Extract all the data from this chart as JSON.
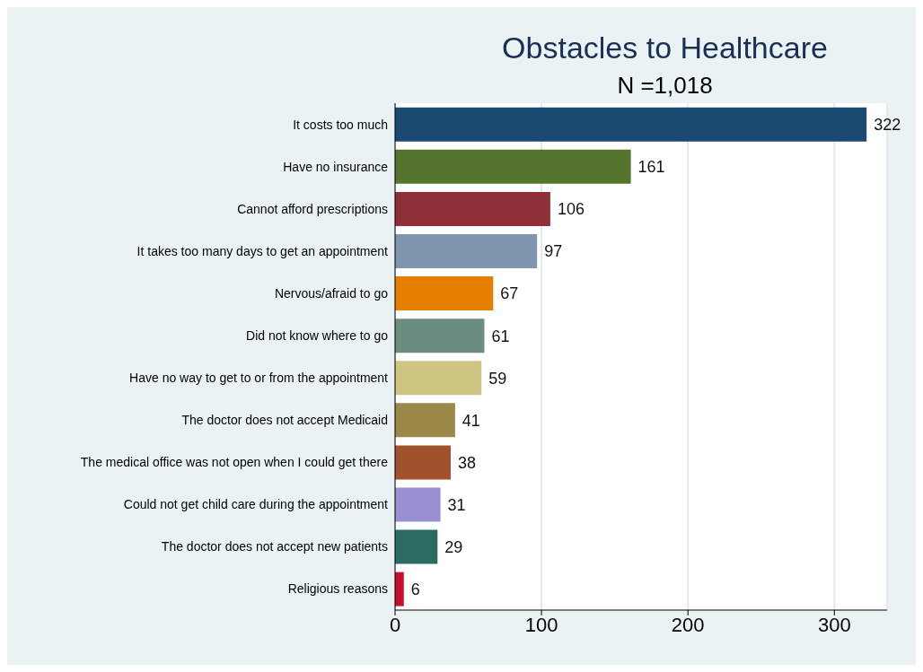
{
  "chart_data": {
    "type": "bar",
    "orientation": "horizontal",
    "title": "Obstacles to Healthcare",
    "subtitle": "N =1,018",
    "categories": [
      "It costs too much",
      "Have no insurance",
      "Cannot afford prescriptions",
      "It takes too many days to get an appointment",
      "Nervous/afraid to go",
      "Did not know where to go",
      "Have no way to get to or from the appointment",
      "The doctor does not accept Medicaid",
      "The medical office was not open when I could get there",
      "Could not get child care during the appointment",
      "The doctor does not accept new patients",
      "Religious reasons"
    ],
    "values": [
      322,
      161,
      106,
      97,
      67,
      61,
      59,
      41,
      38,
      31,
      29,
      6
    ],
    "colors": [
      "#1a4a72",
      "#55752f",
      "#8f3039",
      "#7f95ad",
      "#e67e00",
      "#6a8d7f",
      "#cfc583",
      "#9c8848",
      "#a0522d",
      "#9890d0",
      "#2c6b63",
      "#c8102e"
    ],
    "xlim": [
      0,
      336
    ],
    "xticks": [
      0,
      100,
      200,
      300
    ],
    "grid": "x",
    "data_labels": true
  }
}
